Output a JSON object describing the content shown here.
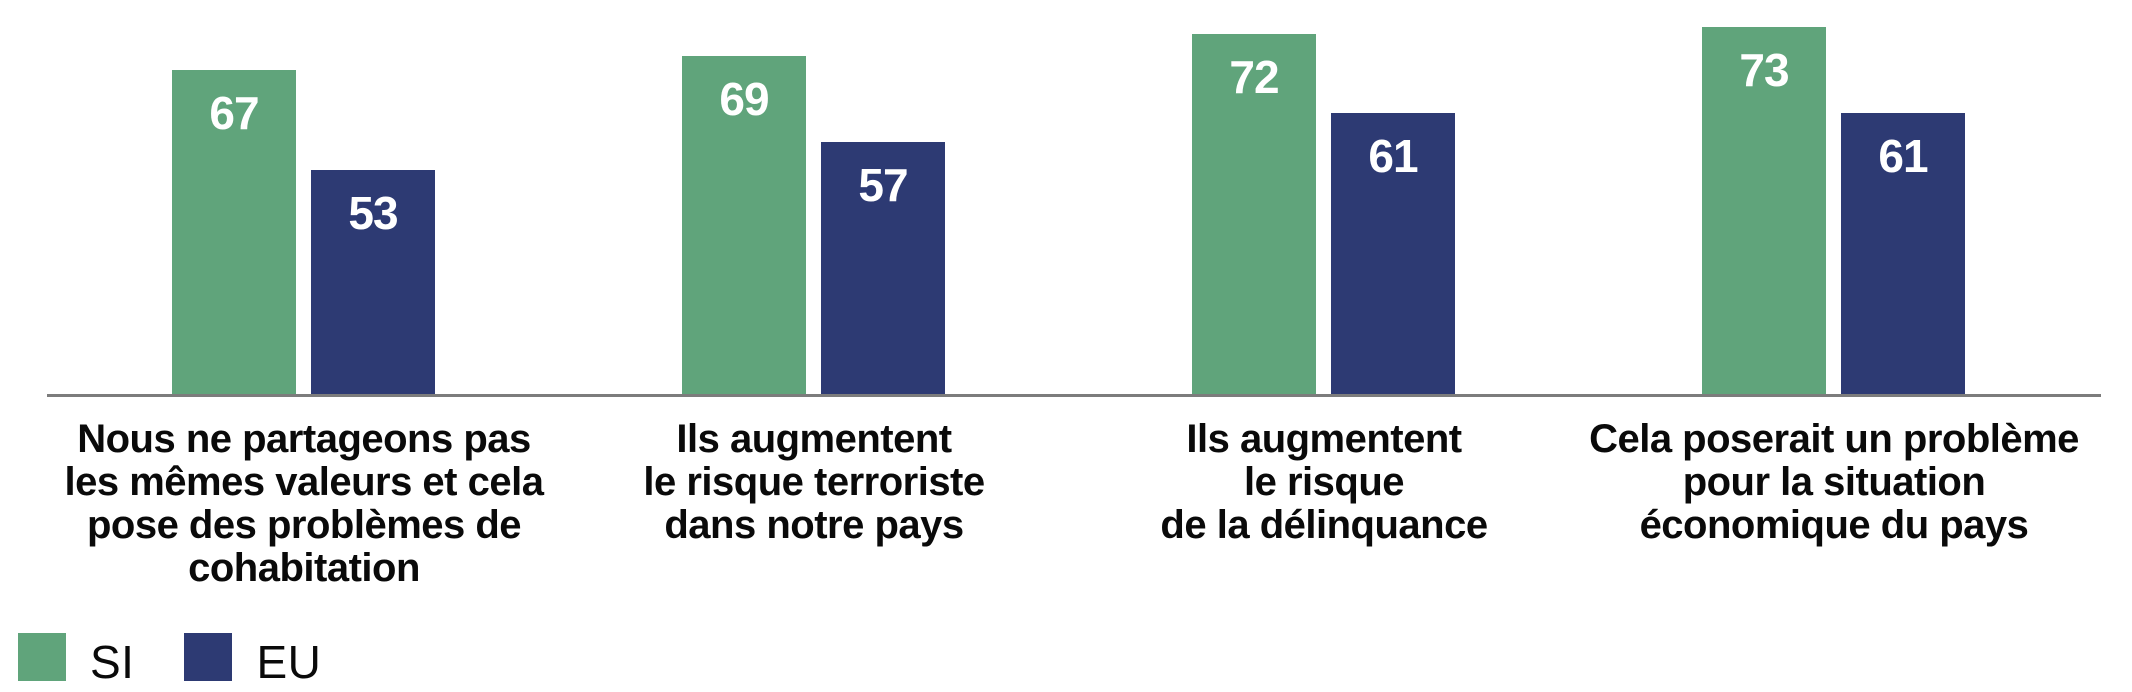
{
  "chart_data": {
    "type": "bar",
    "title": "",
    "xlabel": "",
    "ylabel": "",
    "categories": [
      "Nous ne partageons pas\nles mêmes valeurs et cela\npose des problèmes de\ncohabitation",
      "Ils augmentent\nle risque terroriste\ndans notre pays",
      "Ils augmentent\nle risque\nde la délinquance",
      "Cela poserait un problème\npour la situation\néconomique du pays"
    ],
    "series": [
      {
        "name": "SI",
        "color": "#60a47b",
        "values": [
          67,
          69,
          72,
          73
        ]
      },
      {
        "name": "EU",
        "color": "#2d3a73",
        "values": [
          53,
          57,
          61,
          61
        ]
      }
    ],
    "value_labels_color": "#ffffff",
    "legend_position": "bottom-left",
    "grid": false,
    "axis": {
      "baseline_color": "#7c7c7c",
      "truncated": true,
      "ylim_implied": [
        22,
        77
      ]
    }
  }
}
